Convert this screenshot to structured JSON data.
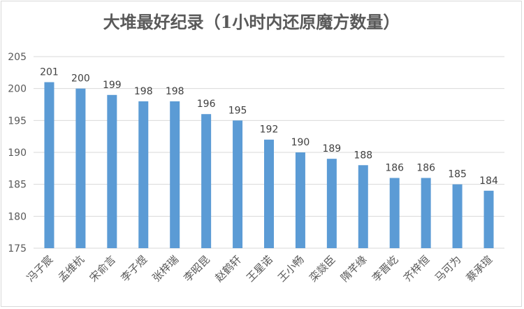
{
  "chart_data": {
    "type": "bar",
    "title": "大堆最好纪录（1小时内还原魔方数量）",
    "categories": [
      "冯子宸",
      "孟维杭",
      "宋俞言",
      "李子煜",
      "张梓瑞",
      "李昭昆",
      "赵鹤轩",
      "王星诺",
      "王小畅",
      "栾燚臣",
      "隋芊缘",
      "李晋屹",
      "齐梓恒",
      "马可为",
      "蔡承瑄"
    ],
    "values": [
      201,
      200,
      199,
      198,
      198,
      196,
      195,
      192,
      190,
      189,
      188,
      186,
      186,
      185,
      184
    ],
    "ylim": [
      175,
      205
    ],
    "yticks": [
      175,
      180,
      185,
      190,
      195,
      200,
      205
    ],
    "grid": true,
    "data_labels": true,
    "bar_color": "#5b9bd5",
    "xlabel": "",
    "ylabel": ""
  }
}
